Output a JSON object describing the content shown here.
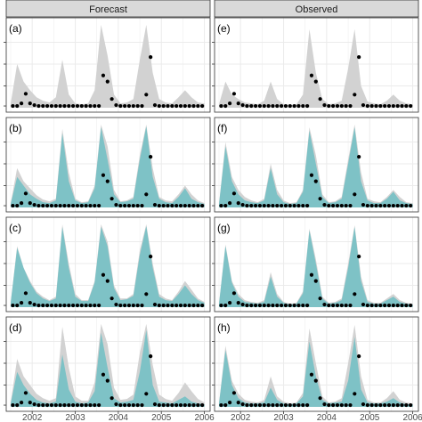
{
  "facets": {
    "col_labels": [
      "Forecast",
      "Observed"
    ],
    "row_labels": [
      [
        "(a)",
        "(e)"
      ],
      [
        "(b)",
        "(f)"
      ],
      [
        "(c)",
        "(g)"
      ],
      [
        "(d)",
        "(h)"
      ]
    ]
  },
  "colors": {
    "strip_bg": "#d9d9d9",
    "panel_border": "#333333",
    "grid": "#ebebeb",
    "band_grey": "#d2d2d2",
    "band_teal": "#79c1c5",
    "point": "#000000",
    "axis_text": "#4d4d4d"
  },
  "chart_data": {
    "type": "area",
    "x_ticks": [
      "2002",
      "2003",
      "2004",
      "2005",
      "2006"
    ],
    "xlim": [
      2001.5,
      2006.05
    ],
    "ylim": [
      0,
      1
    ],
    "grid": true,
    "points_x": [
      2001.55,
      2001.65,
      2001.75,
      2001.85,
      2001.95,
      2002.05,
      2002.15,
      2002.25,
      2002.35,
      2002.45,
      2002.55,
      2002.65,
      2002.75,
      2002.85,
      2002.95,
      2003.05,
      2003.15,
      2003.25,
      2003.35,
      2003.45,
      2003.55,
      2003.65,
      2003.75,
      2003.85,
      2003.95,
      2004.05,
      2004.15,
      2004.25,
      2004.35,
      2004.45,
      2004.55,
      2004.65,
      2004.75,
      2004.85,
      2004.95,
      2005.05,
      2005.15,
      2005.25,
      2005.35,
      2005.45,
      2005.55,
      2005.65,
      2005.75,
      2005.85,
      2005.95
    ],
    "points_y": [
      0.02,
      0.02,
      0.05,
      0.16,
      0.05,
      0.03,
      0.02,
      0.02,
      0.02,
      0.02,
      0.02,
      0.02,
      0.02,
      0.02,
      0.02,
      0.02,
      0.02,
      0.02,
      0.02,
      0.02,
      0.02,
      0.37,
      0.3,
      0.1,
      0.03,
      0.02,
      0.02,
      0.02,
      0.02,
      0.02,
      0.02,
      0.15,
      0.58,
      0.03,
      0.02,
      0.02,
      0.02,
      0.02,
      0.02,
      0.02,
      0.02,
      0.02,
      0.02,
      0.02,
      0.02
    ],
    "band_x": [
      2001.5,
      2001.65,
      2001.8,
      2001.95,
      2002.1,
      2002.25,
      2002.4,
      2002.55,
      2002.7,
      2002.85,
      2003.0,
      2003.15,
      2003.3,
      2003.45,
      2003.6,
      2003.75,
      2003.9,
      2004.05,
      2004.2,
      2004.35,
      2004.5,
      2004.65,
      2004.8,
      2004.95,
      2005.1,
      2005.25,
      2005.4,
      2005.55,
      2005.7,
      2005.85,
      2006.0
    ],
    "panels": [
      {
        "label": "(a)",
        "grey_upper": [
          0.05,
          0.5,
          0.3,
          0.2,
          0.12,
          0.08,
          0.06,
          0.12,
          0.55,
          0.15,
          0.05,
          0.04,
          0.05,
          0.2,
          0.95,
          0.6,
          0.15,
          0.05,
          0.06,
          0.1,
          0.55,
          0.95,
          0.4,
          0.1,
          0.06,
          0.05,
          0.12,
          0.2,
          0.12,
          0.06,
          0.05
        ],
        "teal_upper": null
      },
      {
        "label": "(b)",
        "grey_upper": [
          0.05,
          0.45,
          0.3,
          0.22,
          0.14,
          0.09,
          0.07,
          0.1,
          0.9,
          0.4,
          0.1,
          0.06,
          0.07,
          0.25,
          0.95,
          0.7,
          0.2,
          0.07,
          0.08,
          0.12,
          0.6,
          0.95,
          0.45,
          0.12,
          0.08,
          0.07,
          0.15,
          0.25,
          0.15,
          0.08,
          0.05
        ],
        "teal_upper": [
          0.04,
          0.35,
          0.25,
          0.15,
          0.1,
          0.06,
          0.05,
          0.08,
          0.85,
          0.3,
          0.08,
          0.05,
          0.06,
          0.22,
          0.92,
          0.55,
          0.15,
          0.06,
          0.07,
          0.1,
          0.55,
          0.93,
          0.35,
          0.1,
          0.06,
          0.05,
          0.12,
          0.22,
          0.1,
          0.06,
          0.04
        ]
      },
      {
        "label": "(c)",
        "grey_upper": [
          0.05,
          0.7,
          0.45,
          0.3,
          0.18,
          0.12,
          0.08,
          0.12,
          0.95,
          0.5,
          0.15,
          0.08,
          0.08,
          0.3,
          0.95,
          0.75,
          0.25,
          0.1,
          0.1,
          0.15,
          0.65,
          0.95,
          0.5,
          0.15,
          0.1,
          0.08,
          0.18,
          0.3,
          0.2,
          0.1,
          0.06
        ],
        "teal_upper": [
          0.05,
          0.68,
          0.45,
          0.28,
          0.16,
          0.1,
          0.07,
          0.1,
          0.92,
          0.45,
          0.12,
          0.07,
          0.07,
          0.28,
          0.92,
          0.7,
          0.22,
          0.08,
          0.09,
          0.13,
          0.6,
          0.93,
          0.45,
          0.12,
          0.08,
          0.07,
          0.15,
          0.25,
          0.15,
          0.08,
          0.05
        ]
      },
      {
        "label": "(d)",
        "grey_upper": [
          0.05,
          0.55,
          0.35,
          0.25,
          0.15,
          0.1,
          0.07,
          0.1,
          0.92,
          0.45,
          0.12,
          0.07,
          0.07,
          0.28,
          0.95,
          0.72,
          0.22,
          0.08,
          0.09,
          0.14,
          0.62,
          0.95,
          0.48,
          0.14,
          0.09,
          0.07,
          0.16,
          0.28,
          0.18,
          0.09,
          0.05
        ],
        "teal_upper": [
          0.04,
          0.4,
          0.25,
          0.15,
          0.08,
          0.05,
          0.04,
          0.06,
          0.6,
          0.2,
          0.06,
          0.04,
          0.05,
          0.18,
          0.85,
          0.45,
          0.1,
          0.05,
          0.06,
          0.08,
          0.4,
          0.88,
          0.25,
          0.06,
          0.05,
          0.04,
          0.08,
          0.12,
          0.06,
          0.04,
          0.03
        ]
      },
      {
        "label": "(e)",
        "grey_upper": [
          0.04,
          0.3,
          0.15,
          0.1,
          0.06,
          0.05,
          0.04,
          0.08,
          0.3,
          0.1,
          0.04,
          0.03,
          0.04,
          0.15,
          0.9,
          0.4,
          0.1,
          0.04,
          0.05,
          0.08,
          0.45,
          0.9,
          0.25,
          0.07,
          0.05,
          0.04,
          0.08,
          0.15,
          0.08,
          0.05,
          0.04
        ],
        "teal_upper": null
      },
      {
        "label": "(f)",
        "grey_upper": [
          0.04,
          0.75,
          0.35,
          0.2,
          0.12,
          0.08,
          0.06,
          0.1,
          0.5,
          0.2,
          0.08,
          0.05,
          0.06,
          0.2,
          0.92,
          0.6,
          0.15,
          0.06,
          0.07,
          0.12,
          0.55,
          0.95,
          0.4,
          0.1,
          0.07,
          0.06,
          0.12,
          0.2,
          0.12,
          0.06,
          0.05
        ],
        "teal_upper": [
          0.04,
          0.7,
          0.3,
          0.15,
          0.08,
          0.06,
          0.05,
          0.08,
          0.45,
          0.15,
          0.06,
          0.04,
          0.05,
          0.18,
          0.88,
          0.5,
          0.12,
          0.05,
          0.06,
          0.1,
          0.5,
          0.92,
          0.3,
          0.08,
          0.05,
          0.05,
          0.1,
          0.18,
          0.08,
          0.05,
          0.04
        ]
      },
      {
        "label": "(g)",
        "grey_upper": [
          0.04,
          0.72,
          0.3,
          0.15,
          0.08,
          0.06,
          0.05,
          0.08,
          0.4,
          0.15,
          0.06,
          0.04,
          0.05,
          0.18,
          0.9,
          0.55,
          0.12,
          0.05,
          0.06,
          0.1,
          0.5,
          0.94,
          0.35,
          0.08,
          0.05,
          0.05,
          0.1,
          0.15,
          0.08,
          0.05,
          0.04
        ],
        "teal_upper": [
          0.04,
          0.7,
          0.28,
          0.12,
          0.06,
          0.05,
          0.04,
          0.06,
          0.35,
          0.12,
          0.05,
          0.03,
          0.04,
          0.16,
          0.88,
          0.5,
          0.1,
          0.04,
          0.05,
          0.08,
          0.45,
          0.92,
          0.3,
          0.06,
          0.04,
          0.04,
          0.08,
          0.12,
          0.06,
          0.04,
          0.03
        ]
      },
      {
        "label": "(h)",
        "grey_upper": [
          0.04,
          0.7,
          0.3,
          0.15,
          0.08,
          0.06,
          0.05,
          0.08,
          0.35,
          0.12,
          0.06,
          0.04,
          0.05,
          0.16,
          0.9,
          0.5,
          0.12,
          0.05,
          0.06,
          0.1,
          0.5,
          0.94,
          0.35,
          0.08,
          0.05,
          0.05,
          0.1,
          0.18,
          0.08,
          0.05,
          0.04
        ],
        "teal_upper": [
          0.04,
          0.65,
          0.25,
          0.1,
          0.05,
          0.04,
          0.04,
          0.05,
          0.22,
          0.08,
          0.04,
          0.03,
          0.04,
          0.12,
          0.75,
          0.35,
          0.08,
          0.04,
          0.05,
          0.06,
          0.3,
          0.8,
          0.2,
          0.05,
          0.04,
          0.04,
          0.06,
          0.1,
          0.05,
          0.03,
          0.03
        ]
      }
    ]
  }
}
